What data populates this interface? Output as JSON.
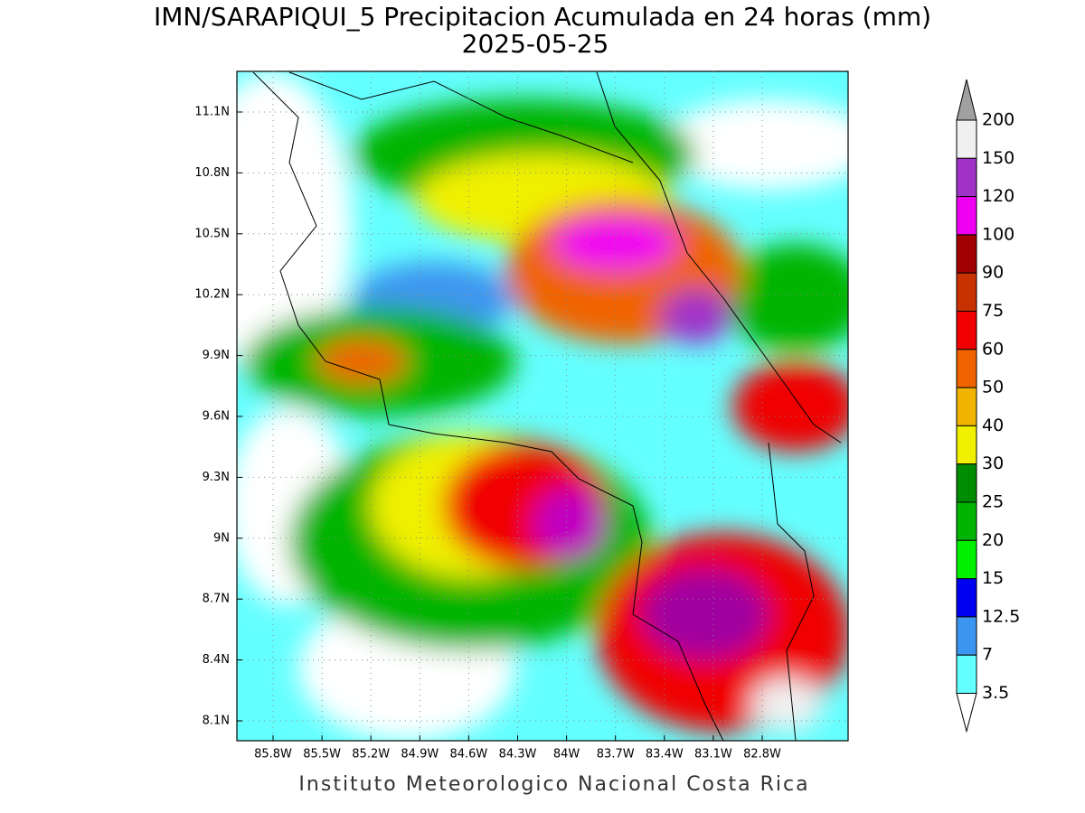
{
  "title": "IMN/SARAPIQUI_5 Precipitacion Acumulada en 24 horas (mm)",
  "subtitle": "2025-05-25",
  "lat_labels": [
    "11.1N",
    "10.8N",
    "10.5N",
    "10.2N",
    "9.9N",
    "9.6N",
    "9.3N",
    "9N",
    "8.7N",
    "8.4N",
    "8.1N"
  ],
  "lon_labels": [
    "85.8W",
    "85.5W",
    "85.2W",
    "84.9W",
    "84.6W",
    "84.3W",
    "84W",
    "83.7W",
    "83.4W",
    "83.1W",
    "82.8W"
  ],
  "colorbar": {
    "labels": [
      "200",
      "150",
      "120",
      "100",
      "90",
      "75",
      "60",
      "50",
      "40",
      "30",
      "25",
      "20",
      "15",
      "12.5",
      "7",
      "3.5"
    ],
    "colors": [
      "#a0a0a0",
      "#f0f0f0",
      "#a032c8",
      "#f000f0",
      "#a00000",
      "#c83200",
      "#f00000",
      "#f06400",
      "#f0b400",
      "#f0f000",
      "#008c00",
      "#00b400",
      "#00f000",
      "#0000f0",
      "#3c96f0",
      "#64ffff",
      "#ffffff"
    ]
  },
  "footer": "Instituto Meteorologico Nacional Costa Rica"
}
